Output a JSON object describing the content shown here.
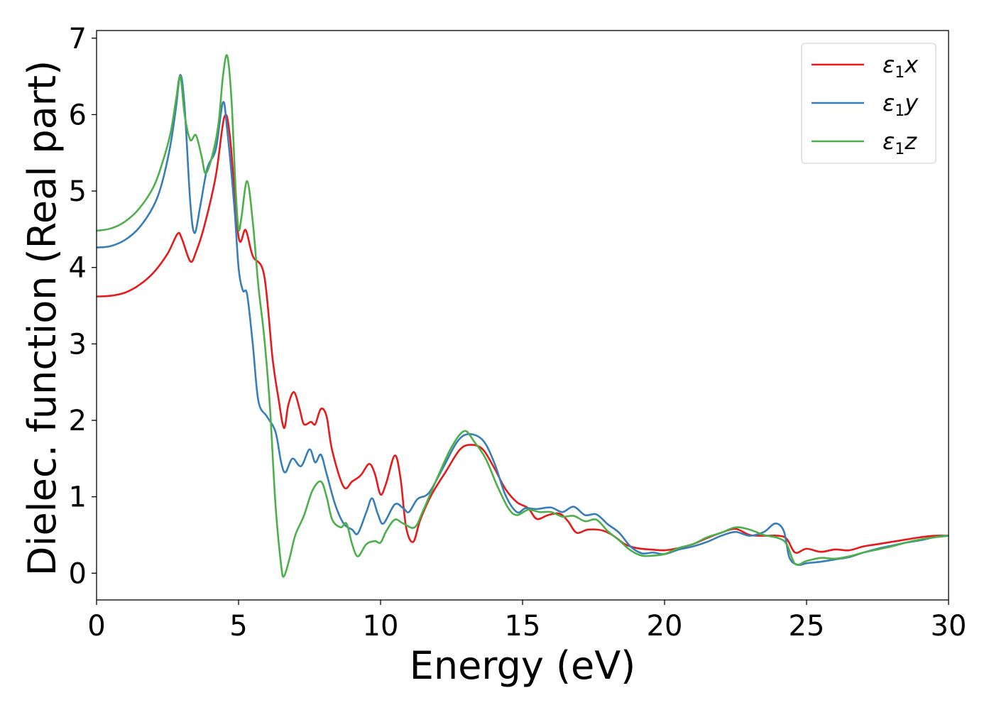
{
  "chart_data": {
    "type": "line",
    "title": "",
    "xlabel": "Energy (eV)",
    "ylabel": "Dielec. function (Real part)",
    "xlim": [
      0,
      30
    ],
    "ylim": [
      -0.35,
      7.1
    ],
    "xticks": [
      0,
      5,
      10,
      15,
      20,
      25,
      30
    ],
    "yticks": [
      0,
      1,
      2,
      3,
      4,
      5,
      6,
      7
    ],
    "grid": false,
    "legend_position": "top-right",
    "series": [
      {
        "name": "ε₁x",
        "legend_main": "ε",
        "legend_sub": "1",
        "legend_tail": "x",
        "color": "#e41a1c",
        "points": [
          [
            0,
            3.62
          ],
          [
            0.5,
            3.63
          ],
          [
            1.0,
            3.67
          ],
          [
            1.5,
            3.77
          ],
          [
            2.0,
            3.93
          ],
          [
            2.5,
            4.18
          ],
          [
            2.85,
            4.44
          ],
          [
            3.0,
            4.38
          ],
          [
            3.3,
            4.08
          ],
          [
            3.5,
            4.2
          ],
          [
            3.8,
            4.55
          ],
          [
            4.2,
            5.2
          ],
          [
            4.5,
            5.97
          ],
          [
            4.7,
            5.7
          ],
          [
            5.0,
            4.4
          ],
          [
            5.25,
            4.49
          ],
          [
            5.5,
            4.15
          ],
          [
            5.9,
            3.9
          ],
          [
            6.2,
            2.8
          ],
          [
            6.4,
            2.3
          ],
          [
            6.6,
            1.9
          ],
          [
            6.75,
            2.2
          ],
          [
            6.95,
            2.37
          ],
          [
            7.15,
            2.15
          ],
          [
            7.3,
            1.95
          ],
          [
            7.55,
            1.98
          ],
          [
            7.7,
            1.95
          ],
          [
            7.9,
            2.15
          ],
          [
            8.1,
            2.05
          ],
          [
            8.3,
            1.6
          ],
          [
            8.7,
            1.13
          ],
          [
            9.0,
            1.2
          ],
          [
            9.3,
            1.28
          ],
          [
            9.6,
            1.43
          ],
          [
            9.8,
            1.3
          ],
          [
            10.0,
            1.03
          ],
          [
            10.2,
            1.18
          ],
          [
            10.5,
            1.54
          ],
          [
            10.7,
            1.25
          ],
          [
            10.9,
            0.6
          ],
          [
            11.15,
            0.41
          ],
          [
            11.4,
            0.7
          ],
          [
            11.8,
            1.03
          ],
          [
            12.3,
            1.33
          ],
          [
            12.8,
            1.62
          ],
          [
            13.2,
            1.68
          ],
          [
            13.6,
            1.62
          ],
          [
            14.0,
            1.38
          ],
          [
            14.4,
            1.1
          ],
          [
            14.8,
            0.93
          ],
          [
            15.2,
            0.85
          ],
          [
            15.5,
            0.71
          ],
          [
            15.9,
            0.76
          ],
          [
            16.3,
            0.78
          ],
          [
            16.6,
            0.68
          ],
          [
            16.9,
            0.53
          ],
          [
            17.3,
            0.57
          ],
          [
            17.8,
            0.56
          ],
          [
            18.2,
            0.49
          ],
          [
            18.6,
            0.38
          ],
          [
            19.0,
            0.33
          ],
          [
            19.5,
            0.31
          ],
          [
            20.0,
            0.3
          ],
          [
            20.5,
            0.33
          ],
          [
            21.0,
            0.38
          ],
          [
            21.5,
            0.46
          ],
          [
            22.0,
            0.53
          ],
          [
            22.5,
            0.58
          ],
          [
            23.0,
            0.5
          ],
          [
            23.5,
            0.49
          ],
          [
            24.0,
            0.49
          ],
          [
            24.3,
            0.45
          ],
          [
            24.6,
            0.27
          ],
          [
            25.0,
            0.32
          ],
          [
            25.5,
            0.28
          ],
          [
            26.0,
            0.31
          ],
          [
            26.5,
            0.3
          ],
          [
            27.0,
            0.35
          ],
          [
            27.5,
            0.38
          ],
          [
            28.0,
            0.41
          ],
          [
            28.5,
            0.44
          ],
          [
            29.0,
            0.47
          ],
          [
            29.5,
            0.49
          ],
          [
            30.0,
            0.49
          ]
        ]
      },
      {
        "name": "ε₁y",
        "legend_main": "ε",
        "legend_sub": "1",
        "legend_tail": "y",
        "color": "#377eb8",
        "points": [
          [
            0,
            4.26
          ],
          [
            0.5,
            4.28
          ],
          [
            1.0,
            4.36
          ],
          [
            1.5,
            4.52
          ],
          [
            2.0,
            4.8
          ],
          [
            2.3,
            5.1
          ],
          [
            2.6,
            5.6
          ],
          [
            2.8,
            6.1
          ],
          [
            2.95,
            6.52
          ],
          [
            3.1,
            6.1
          ],
          [
            3.3,
            4.85
          ],
          [
            3.45,
            4.45
          ],
          [
            3.65,
            4.8
          ],
          [
            3.9,
            5.3
          ],
          [
            4.2,
            5.55
          ],
          [
            4.45,
            6.16
          ],
          [
            4.6,
            5.8
          ],
          [
            4.85,
            4.8
          ],
          [
            5.0,
            4.0
          ],
          [
            5.15,
            3.7
          ],
          [
            5.3,
            3.65
          ],
          [
            5.5,
            3.0
          ],
          [
            5.7,
            2.25
          ],
          [
            6.0,
            2.05
          ],
          [
            6.3,
            1.85
          ],
          [
            6.5,
            1.45
          ],
          [
            6.65,
            1.32
          ],
          [
            6.9,
            1.5
          ],
          [
            7.2,
            1.4
          ],
          [
            7.5,
            1.62
          ],
          [
            7.7,
            1.45
          ],
          [
            7.9,
            1.55
          ],
          [
            8.1,
            1.3
          ],
          [
            8.4,
            0.9
          ],
          [
            8.7,
            0.65
          ],
          [
            9.0,
            0.57
          ],
          [
            9.2,
            0.52
          ],
          [
            9.5,
            0.8
          ],
          [
            9.7,
            0.98
          ],
          [
            9.9,
            0.78
          ],
          [
            10.1,
            0.65
          ],
          [
            10.5,
            0.9
          ],
          [
            10.8,
            0.85
          ],
          [
            11.0,
            0.8
          ],
          [
            11.3,
            0.97
          ],
          [
            11.7,
            1.05
          ],
          [
            12.2,
            1.38
          ],
          [
            12.7,
            1.72
          ],
          [
            13.1,
            1.82
          ],
          [
            13.6,
            1.74
          ],
          [
            14.0,
            1.45
          ],
          [
            14.4,
            1.02
          ],
          [
            14.8,
            0.8
          ],
          [
            15.1,
            0.85
          ],
          [
            15.5,
            0.84
          ],
          [
            16.0,
            0.86
          ],
          [
            16.4,
            0.8
          ],
          [
            16.8,
            0.87
          ],
          [
            17.2,
            0.76
          ],
          [
            17.6,
            0.77
          ],
          [
            18.0,
            0.64
          ],
          [
            18.4,
            0.53
          ],
          [
            18.8,
            0.35
          ],
          [
            19.2,
            0.26
          ],
          [
            19.6,
            0.27
          ],
          [
            20.0,
            0.25
          ],
          [
            20.5,
            0.31
          ],
          [
            21.0,
            0.35
          ],
          [
            21.5,
            0.41
          ],
          [
            22.0,
            0.49
          ],
          [
            22.5,
            0.54
          ],
          [
            23.0,
            0.49
          ],
          [
            23.5,
            0.54
          ],
          [
            23.9,
            0.65
          ],
          [
            24.2,
            0.55
          ],
          [
            24.4,
            0.2
          ],
          [
            24.7,
            0.11
          ],
          [
            25.0,
            0.13
          ],
          [
            25.5,
            0.15
          ],
          [
            26.0,
            0.18
          ],
          [
            26.5,
            0.21
          ],
          [
            27.0,
            0.27
          ],
          [
            27.5,
            0.32
          ],
          [
            28.0,
            0.36
          ],
          [
            28.5,
            0.4
          ],
          [
            29.0,
            0.43
          ],
          [
            29.5,
            0.47
          ],
          [
            30.0,
            0.49
          ]
        ]
      },
      {
        "name": "ε₁z",
        "legend_main": "ε",
        "legend_sub": "1",
        "legend_tail": "z",
        "color": "#4daf4a",
        "points": [
          [
            0,
            4.48
          ],
          [
            0.5,
            4.51
          ],
          [
            1.0,
            4.6
          ],
          [
            1.5,
            4.77
          ],
          [
            2.0,
            5.05
          ],
          [
            2.3,
            5.35
          ],
          [
            2.6,
            5.75
          ],
          [
            2.8,
            6.2
          ],
          [
            2.95,
            6.5
          ],
          [
            3.1,
            6.0
          ],
          [
            3.3,
            5.67
          ],
          [
            3.5,
            5.73
          ],
          [
            3.7,
            5.45
          ],
          [
            3.85,
            5.23
          ],
          [
            4.1,
            5.5
          ],
          [
            4.3,
            5.9
          ],
          [
            4.45,
            6.5
          ],
          [
            4.6,
            6.77
          ],
          [
            4.75,
            6.2
          ],
          [
            4.9,
            5.0
          ],
          [
            5.0,
            4.5
          ],
          [
            5.1,
            4.65
          ],
          [
            5.3,
            5.13
          ],
          [
            5.5,
            4.6
          ],
          [
            5.7,
            3.75
          ],
          [
            5.9,
            3.1
          ],
          [
            6.1,
            2.2
          ],
          [
            6.3,
            0.9
          ],
          [
            6.5,
            0.1
          ],
          [
            6.6,
            -0.04
          ],
          [
            6.8,
            0.2
          ],
          [
            7.0,
            0.5
          ],
          [
            7.3,
            0.75
          ],
          [
            7.6,
            1.08
          ],
          [
            7.9,
            1.2
          ],
          [
            8.1,
            1.0
          ],
          [
            8.3,
            0.7
          ],
          [
            8.6,
            0.6
          ],
          [
            8.8,
            0.65
          ],
          [
            9.0,
            0.38
          ],
          [
            9.2,
            0.22
          ],
          [
            9.5,
            0.38
          ],
          [
            9.8,
            0.42
          ],
          [
            10.0,
            0.4
          ],
          [
            10.2,
            0.55
          ],
          [
            10.5,
            0.7
          ],
          [
            10.8,
            0.65
          ],
          [
            11.2,
            0.6
          ],
          [
            11.5,
            0.82
          ],
          [
            12.0,
            1.25
          ],
          [
            12.5,
            1.65
          ],
          [
            12.95,
            1.86
          ],
          [
            13.3,
            1.72
          ],
          [
            13.7,
            1.5
          ],
          [
            14.1,
            1.15
          ],
          [
            14.5,
            0.85
          ],
          [
            14.8,
            0.76
          ],
          [
            15.2,
            0.83
          ],
          [
            15.6,
            0.8
          ],
          [
            16.0,
            0.8
          ],
          [
            16.4,
            0.74
          ],
          [
            16.8,
            0.75
          ],
          [
            17.2,
            0.68
          ],
          [
            17.6,
            0.7
          ],
          [
            18.0,
            0.55
          ],
          [
            18.4,
            0.43
          ],
          [
            18.8,
            0.3
          ],
          [
            19.2,
            0.23
          ],
          [
            19.6,
            0.23
          ],
          [
            20.0,
            0.25
          ],
          [
            20.5,
            0.33
          ],
          [
            21.0,
            0.38
          ],
          [
            21.5,
            0.47
          ],
          [
            22.0,
            0.53
          ],
          [
            22.5,
            0.6
          ],
          [
            23.0,
            0.57
          ],
          [
            23.5,
            0.5
          ],
          [
            24.0,
            0.46
          ],
          [
            24.3,
            0.38
          ],
          [
            24.6,
            0.12
          ],
          [
            25.0,
            0.16
          ],
          [
            25.5,
            0.2
          ],
          [
            26.0,
            0.19
          ],
          [
            26.5,
            0.22
          ],
          [
            27.0,
            0.27
          ],
          [
            27.5,
            0.31
          ],
          [
            28.0,
            0.35
          ],
          [
            28.5,
            0.4
          ],
          [
            29.0,
            0.44
          ],
          [
            29.5,
            0.47
          ],
          [
            30.0,
            0.49
          ]
        ]
      }
    ]
  }
}
